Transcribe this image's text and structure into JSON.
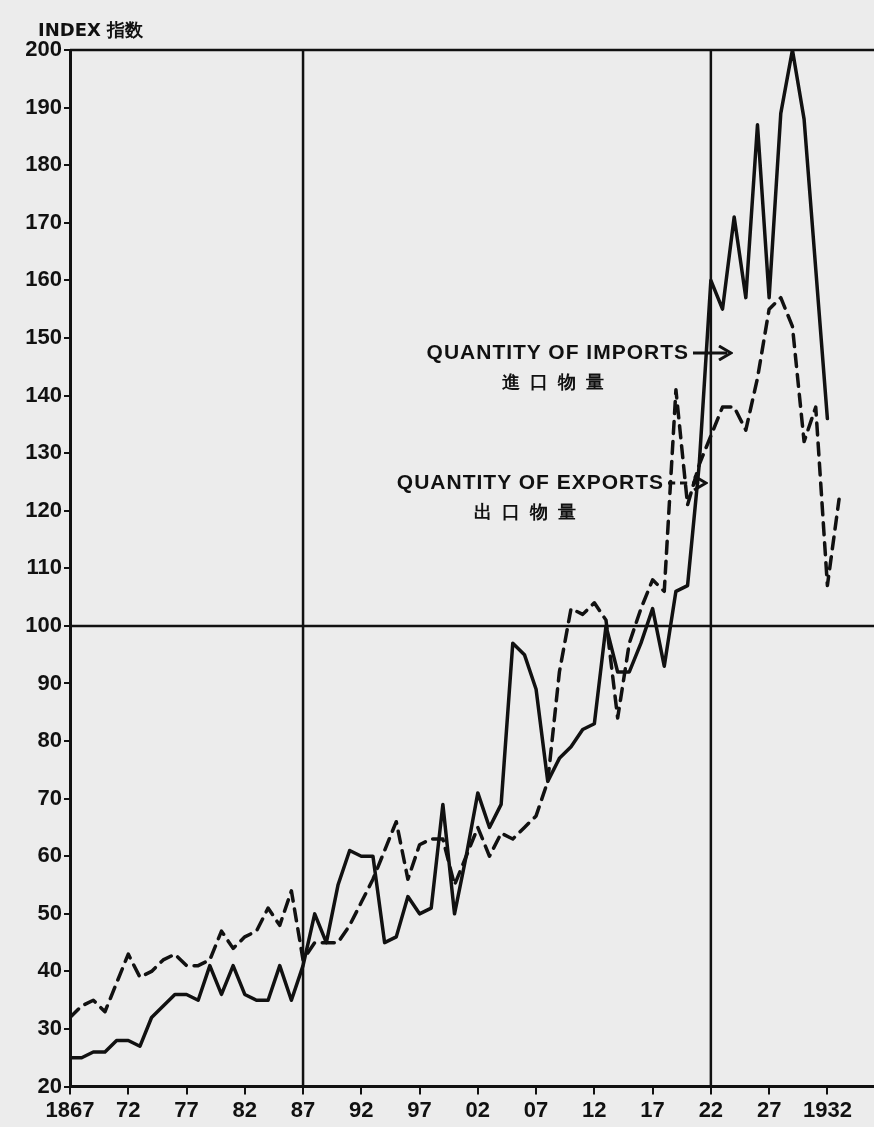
{
  "chart_data": {
    "type": "line",
    "ylabel": "INDEX 指数",
    "x": [
      1867,
      1868,
      1869,
      1870,
      1871,
      1872,
      1873,
      1874,
      1875,
      1876,
      1877,
      1878,
      1879,
      1880,
      1881,
      1882,
      1883,
      1884,
      1885,
      1886,
      1887,
      1888,
      1889,
      1890,
      1891,
      1892,
      1893,
      1894,
      1895,
      1896,
      1897,
      1898,
      1899,
      1900,
      1901,
      1902,
      1903,
      1904,
      1905,
      1906,
      1907,
      1908,
      1909,
      1910,
      1911,
      1912,
      1913,
      1914,
      1915,
      1916,
      1917,
      1918,
      1919,
      1920,
      1921,
      1922,
      1923,
      1924,
      1925,
      1926,
      1927,
      1928,
      1929,
      1930,
      1931,
      1932,
      1933
    ],
    "series": [
      {
        "name": "QUANTITY OF IMPORTS",
        "color": "#111111",
        "line_style": "solid",
        "values": [
          25,
          25,
          26,
          26,
          28,
          28,
          27,
          32,
          34,
          36,
          36,
          35,
          41,
          36,
          41,
          36,
          35,
          35,
          41,
          35,
          41,
          50,
          45,
          55,
          61,
          60,
          60,
          45,
          46,
          53,
          50,
          51,
          69,
          50,
          60,
          71,
          65,
          69,
          97,
          95,
          89,
          73,
          77,
          79,
          82,
          83,
          100,
          92,
          92,
          97,
          103,
          93,
          106,
          107,
          128,
          160,
          155,
          171,
          157,
          187,
          157,
          189,
          200,
          188,
          162,
          136,
          null
        ]
      },
      {
        "name": "QUANTITY OF EXPORTS",
        "color": "#111111",
        "line_style": "dashed",
        "values": [
          32,
          34,
          35,
          33,
          38,
          43,
          39,
          40,
          42,
          43,
          41,
          41,
          42,
          47,
          44,
          46,
          47,
          51,
          48,
          54,
          42,
          45,
          45,
          45,
          48,
          52,
          56,
          61,
          66,
          56,
          62,
          63,
          63,
          55,
          60,
          65,
          60,
          64,
          63,
          65,
          67,
          73,
          92,
          103,
          102,
          104,
          101,
          84,
          97,
          103,
          108,
          106,
          141,
          121,
          128,
          133,
          138,
          138,
          134,
          143,
          155,
          157,
          152,
          132,
          138,
          107,
          122
        ]
      }
    ],
    "annotations": [
      "進口物量",
      "出口物量"
    ],
    "xlim": [
      1867,
      1936
    ],
    "xticks": [
      1867,
      {
        "value": 1872,
        "label": "72"
      },
      {
        "value": 1877,
        "label": "77"
      },
      {
        "value": 1882,
        "label": "82"
      },
      {
        "value": 1887,
        "label": "87"
      },
      {
        "value": 1892,
        "label": "92"
      },
      {
        "value": 1897,
        "label": "97"
      },
      {
        "value": 1902,
        "label": "02"
      },
      {
        "value": 1907,
        "label": "07"
      },
      {
        "value": 1912,
        "label": "12"
      },
      {
        "value": 1917,
        "label": "17"
      },
      {
        "value": 1922,
        "label": "22"
      },
      {
        "value": 1927,
        "label": "27"
      },
      1932
    ],
    "ylim": [
      20,
      200
    ],
    "yticks": [
      20,
      30,
      40,
      50,
      60,
      70,
      80,
      90,
      100,
      110,
      120,
      130,
      140,
      150,
      160,
      170,
      180,
      190,
      200
    ],
    "ref_lines": [
      {
        "axis": "y",
        "value": 100,
        "color": "#111111"
      },
      {
        "axis": "x",
        "value": 1887,
        "color": "#111111"
      },
      {
        "axis": "x",
        "value": 1922,
        "color": "#111111"
      }
    ],
    "marker": "none",
    "legend": "right"
  }
}
